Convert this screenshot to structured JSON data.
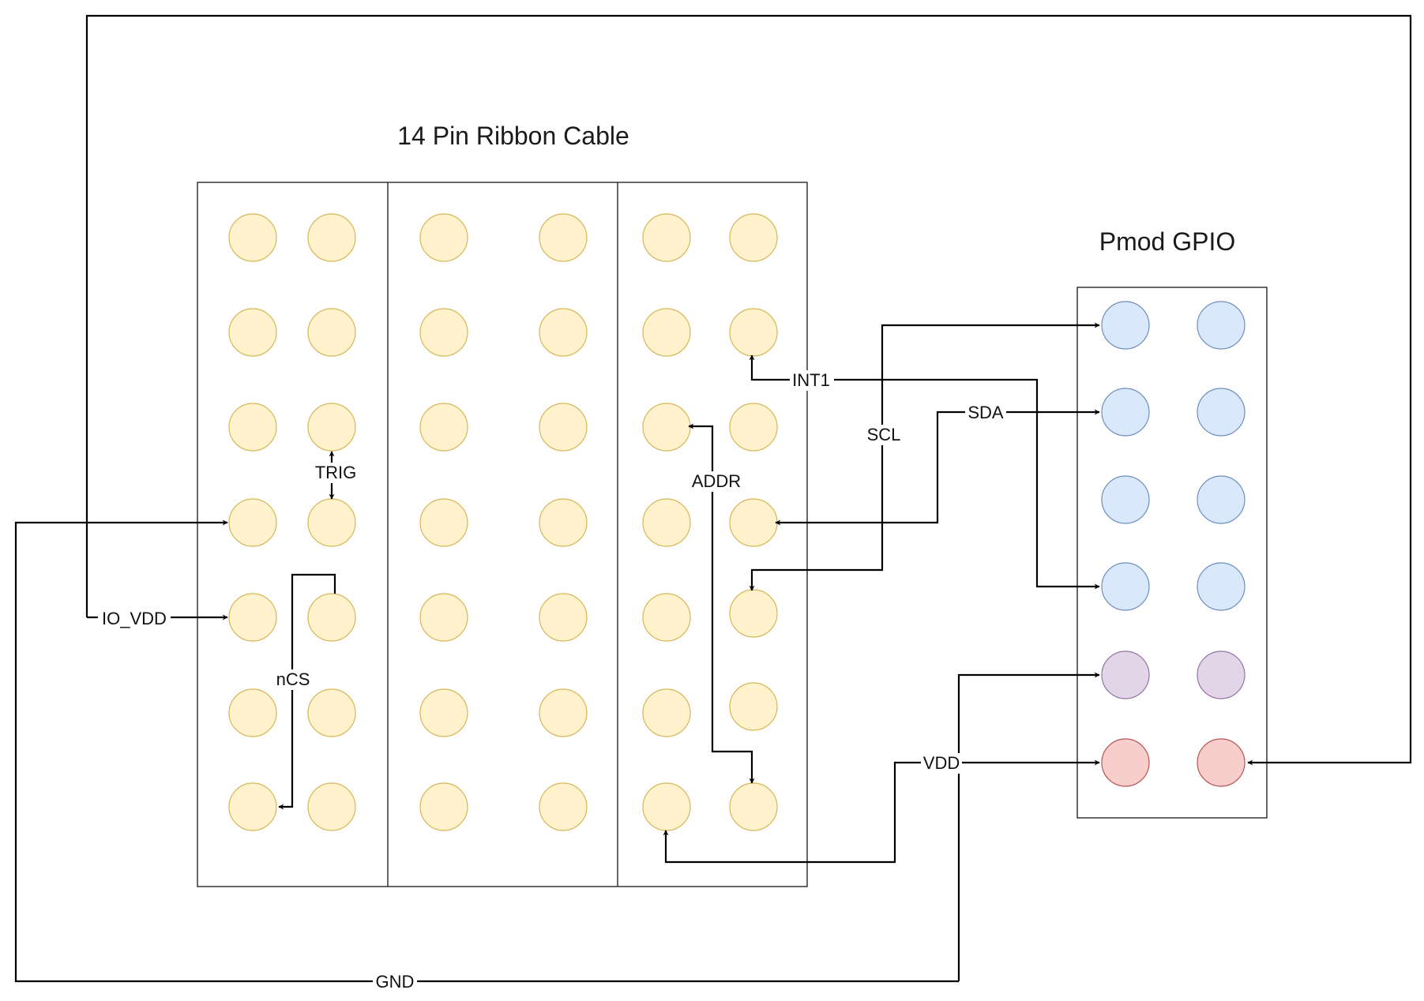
{
  "ribbon": {
    "title": "14 Pin Ribbon Cable",
    "pin_fill": "#fff2cc",
    "pin_stroke": "#d6b656"
  },
  "pmod": {
    "title": "Pmod GPIO",
    "gpio_fill": "#dae8fc",
    "gpio_stroke": "#6c8ebf",
    "gnd_fill": "#e1d5e7",
    "gnd_stroke": "#9673a6",
    "vdd_fill": "#f8cecc",
    "vdd_stroke": "#b85450"
  },
  "wires": {
    "io_vdd": "IO_VDD",
    "trig": "TRIG",
    "ncs": "nCS",
    "int1": "INT1",
    "scl": "SCL",
    "sda": "SDA",
    "addr": "ADDR",
    "vdd": "VDD",
    "gnd": "GND"
  }
}
